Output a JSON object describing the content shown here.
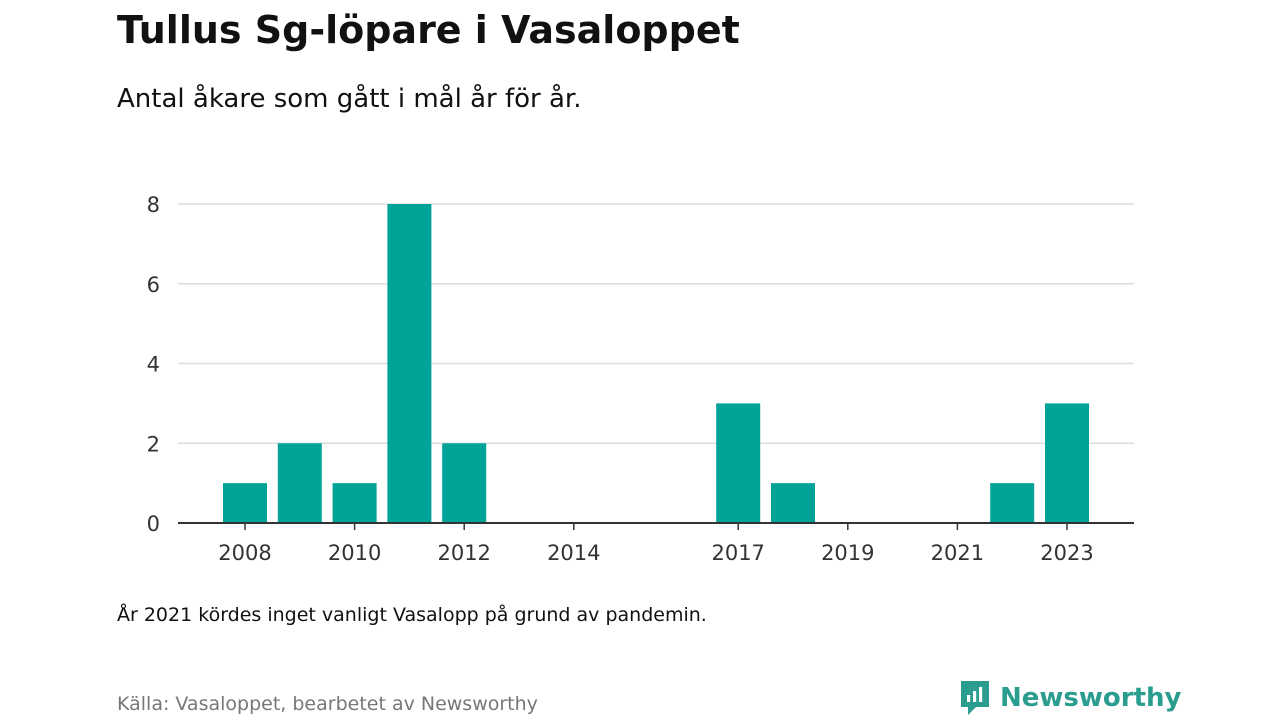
{
  "title": "Tullus Sg-löpare i Vasaloppet",
  "subtitle": "Antal åkare som gått i mål år för år.",
  "note": "År 2021 kördes inget vanligt Vasalopp på grund av pandemin.",
  "source": "Källa: Vasaloppet, bearbetet av Newsworthy",
  "brand": {
    "name": "Newsworthy",
    "icon": "newsworthy-logo-icon",
    "color": "#2a9d8f"
  },
  "colors": {
    "bar": "#00a398",
    "grid": "#dddddd",
    "axis": "#333333",
    "text": "#111111"
  },
  "chart_data": {
    "type": "bar",
    "title": "Tullus Sg-löpare i Vasaloppet",
    "subtitle": "Antal åkare som gått i mål år för år.",
    "xlabel": "",
    "ylabel": "",
    "categories": [
      2008,
      2009,
      2010,
      2011,
      2012,
      2013,
      2014,
      2015,
      2016,
      2017,
      2018,
      2019,
      2020,
      2021,
      2022,
      2023
    ],
    "values": [
      1,
      2,
      1,
      8,
      2,
      0,
      0,
      0,
      0,
      3,
      1,
      0,
      0,
      0,
      1,
      3
    ],
    "x_tick_labels": [
      "2008",
      "2010",
      "2012",
      "2014",
      "2017",
      "2019",
      "2021",
      "2023"
    ],
    "y_ticks": [
      0,
      2,
      4,
      6,
      8
    ],
    "ylim": [
      0,
      8
    ],
    "grid": true,
    "legend": "none"
  }
}
